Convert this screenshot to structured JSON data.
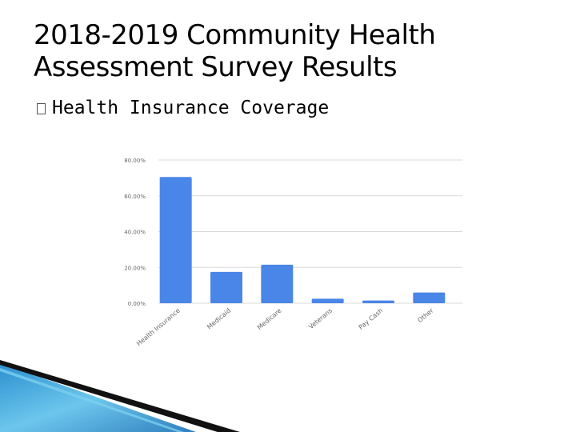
{
  "slide": {
    "title_line1": "2018-2019 Community Health",
    "title_line2": "Assessment Survey Results",
    "bullet": "Health Insurance Coverage",
    "bullet_icon": "square-bullet-icon"
  },
  "colors": {
    "bar": "#4a86e8",
    "grid": "#d9d9d9",
    "tick_text": "#666666",
    "decor_dark": "#111111",
    "decor_blue": "#4fb3e0"
  },
  "chart_data": {
    "type": "bar",
    "title": "",
    "xlabel": "",
    "ylabel": "",
    "categories": [
      "Health Insurance",
      "Medicaid",
      "Medicare",
      "Veterans",
      "Pay Cash",
      "Other"
    ],
    "values": [
      70.5,
      17.5,
      21.5,
      2.5,
      1.5,
      6.0
    ],
    "ylim": [
      0,
      80
    ],
    "yticks": [
      0,
      20,
      40,
      60,
      80
    ],
    "ytick_labels": [
      "0.00%",
      "20.00%",
      "40.00%",
      "60.00%",
      "80.00%"
    ],
    "grid": true,
    "legend": "none"
  }
}
